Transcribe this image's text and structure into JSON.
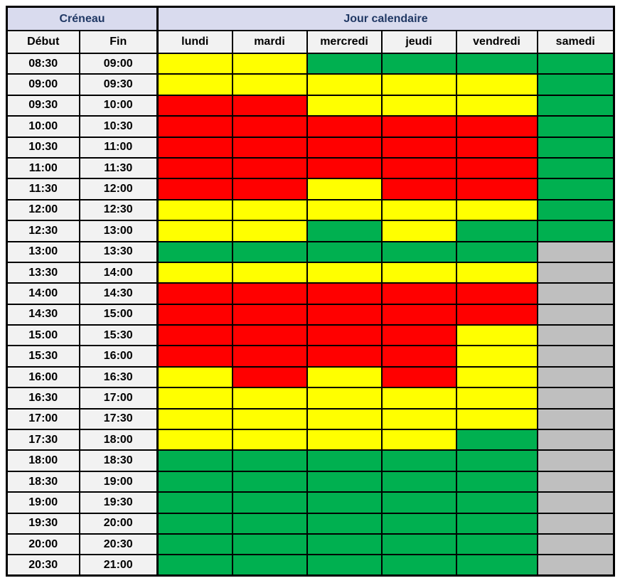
{
  "table": {
    "header_groups": [
      {
        "label": "Créneau",
        "colspan": 2
      },
      {
        "label": "Jour calendaire",
        "colspan": 6
      }
    ],
    "time_columns": [
      "Début",
      "Fin"
    ],
    "day_columns": [
      "lundi",
      "mardi",
      "mercredi",
      "jeudi",
      "vendredi",
      "samedi"
    ],
    "colors": {
      "yellow": "#FFFF00",
      "red": "#FF0000",
      "green": "#00B050",
      "gray": "#BFBFBF",
      "group_header_bg": "#D9DBEE",
      "group_header_text": "#203864",
      "subheader_bg": "#F2F2F2",
      "border": "#000000"
    },
    "rows": [
      {
        "debut": "08:30",
        "fin": "09:00",
        "cells": [
          "yellow",
          "yellow",
          "green",
          "green",
          "green",
          "green"
        ]
      },
      {
        "debut": "09:00",
        "fin": "09:30",
        "cells": [
          "yellow",
          "yellow",
          "yellow",
          "yellow",
          "yellow",
          "green"
        ]
      },
      {
        "debut": "09:30",
        "fin": "10:00",
        "cells": [
          "red",
          "red",
          "yellow",
          "yellow",
          "yellow",
          "green"
        ]
      },
      {
        "debut": "10:00",
        "fin": "10:30",
        "cells": [
          "red",
          "red",
          "red",
          "red",
          "red",
          "green"
        ]
      },
      {
        "debut": "10:30",
        "fin": "11:00",
        "cells": [
          "red",
          "red",
          "red",
          "red",
          "red",
          "green"
        ]
      },
      {
        "debut": "11:00",
        "fin": "11:30",
        "cells": [
          "red",
          "red",
          "red",
          "red",
          "red",
          "green"
        ]
      },
      {
        "debut": "11:30",
        "fin": "12:00",
        "cells": [
          "red",
          "red",
          "yellow",
          "red",
          "red",
          "green"
        ]
      },
      {
        "debut": "12:00",
        "fin": "12:30",
        "cells": [
          "yellow",
          "yellow",
          "yellow",
          "yellow",
          "yellow",
          "green"
        ]
      },
      {
        "debut": "12:30",
        "fin": "13:00",
        "cells": [
          "yellow",
          "yellow",
          "green",
          "yellow",
          "green",
          "green"
        ]
      },
      {
        "debut": "13:00",
        "fin": "13:30",
        "cells": [
          "green",
          "green",
          "green",
          "green",
          "green",
          "gray"
        ]
      },
      {
        "debut": "13:30",
        "fin": "14:00",
        "cells": [
          "yellow",
          "yellow",
          "yellow",
          "yellow",
          "yellow",
          "gray"
        ]
      },
      {
        "debut": "14:00",
        "fin": "14:30",
        "cells": [
          "red",
          "red",
          "red",
          "red",
          "red",
          "gray"
        ]
      },
      {
        "debut": "14:30",
        "fin": "15:00",
        "cells": [
          "red",
          "red",
          "red",
          "red",
          "red",
          "gray"
        ]
      },
      {
        "debut": "15:00",
        "fin": "15:30",
        "cells": [
          "red",
          "red",
          "red",
          "red",
          "yellow",
          "gray"
        ]
      },
      {
        "debut": "15:30",
        "fin": "16:00",
        "cells": [
          "red",
          "red",
          "red",
          "red",
          "yellow",
          "gray"
        ]
      },
      {
        "debut": "16:00",
        "fin": "16:30",
        "cells": [
          "yellow",
          "red",
          "yellow",
          "red",
          "yellow",
          "gray"
        ]
      },
      {
        "debut": "16:30",
        "fin": "17:00",
        "cells": [
          "yellow",
          "yellow",
          "yellow",
          "yellow",
          "yellow",
          "gray"
        ]
      },
      {
        "debut": "17:00",
        "fin": "17:30",
        "cells": [
          "yellow",
          "yellow",
          "yellow",
          "yellow",
          "yellow",
          "gray"
        ]
      },
      {
        "debut": "17:30",
        "fin": "18:00",
        "cells": [
          "yellow",
          "yellow",
          "yellow",
          "yellow",
          "green",
          "gray"
        ]
      },
      {
        "debut": "18:00",
        "fin": "18:30",
        "cells": [
          "green",
          "green",
          "green",
          "green",
          "green",
          "gray"
        ]
      },
      {
        "debut": "18:30",
        "fin": "19:00",
        "cells": [
          "green",
          "green",
          "green",
          "green",
          "green",
          "gray"
        ]
      },
      {
        "debut": "19:00",
        "fin": "19:30",
        "cells": [
          "green",
          "green",
          "green",
          "green",
          "green",
          "gray"
        ]
      },
      {
        "debut": "19:30",
        "fin": "20:00",
        "cells": [
          "green",
          "green",
          "green",
          "green",
          "green",
          "gray"
        ]
      },
      {
        "debut": "20:00",
        "fin": "20:30",
        "cells": [
          "green",
          "green",
          "green",
          "green",
          "green",
          "gray"
        ]
      },
      {
        "debut": "20:30",
        "fin": "21:00",
        "cells": [
          "green",
          "green",
          "green",
          "green",
          "green",
          "gray"
        ]
      }
    ]
  }
}
